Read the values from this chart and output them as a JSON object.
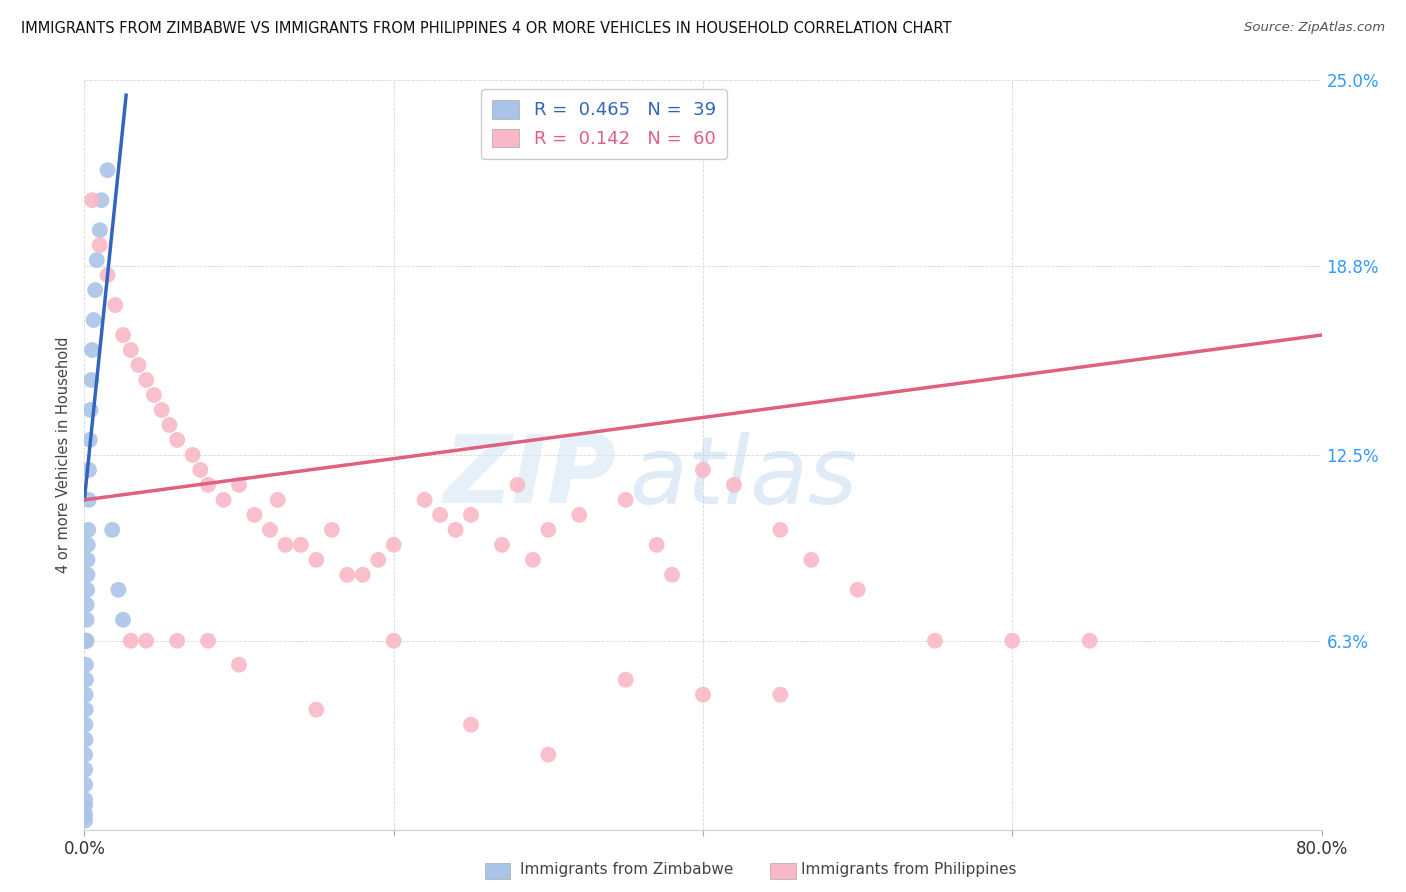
{
  "title": "IMMIGRANTS FROM ZIMBABWE VS IMMIGRANTS FROM PHILIPPINES 4 OR MORE VEHICLES IN HOUSEHOLD CORRELATION CHART",
  "source": "Source: ZipAtlas.com",
  "ylabel": "4 or more Vehicles in Household",
  "xlim": [
    0.0,
    80.0
  ],
  "ylim": [
    0.0,
    25.0
  ],
  "yticks": [
    0.0,
    6.3,
    12.5,
    18.8,
    25.0
  ],
  "xticks": [
    0.0,
    20.0,
    40.0,
    60.0,
    80.0
  ],
  "xtick_labels_show": [
    "0.0%",
    "80.0%"
  ],
  "ytick_labels": [
    "",
    "6.3%",
    "12.5%",
    "18.8%",
    "25.0%"
  ],
  "zim_color": "#aac4e8",
  "phil_color": "#f9b8c8",
  "zim_line_color": "#3366bb",
  "phil_line_color": "#e06080",
  "background_color": "#ffffff",
  "grid_color": "#d8d8d8",
  "legend_zim_label": "R =  0.465   N =  39",
  "legend_phil_label": "R =  0.142   N =  60",
  "legend_zim_color": "#3366bb",
  "legend_phil_color": "#e06080",
  "bottom_zim_label": "Immigrants from Zimbabwe",
  "bottom_phil_label": "Immigrants from Philippines",
  "zim_x": [
    0.05,
    0.05,
    0.05,
    0.05,
    0.05,
    0.05,
    0.05,
    0.07,
    0.07,
    0.08,
    0.08,
    0.1,
    0.1,
    0.12,
    0.12,
    0.13,
    0.15,
    0.15,
    0.18,
    0.2,
    0.2,
    0.22,
    0.25,
    0.28,
    0.3,
    0.35,
    0.4,
    0.45,
    0.5,
    0.6,
    0.7,
    0.8,
    1.0,
    1.1,
    1.5,
    1.8,
    2.2,
    2.5,
    0.05
  ],
  "zim_y": [
    0.3,
    0.5,
    0.8,
    1.0,
    1.5,
    2.0,
    2.5,
    3.0,
    3.5,
    4.0,
    4.5,
    5.0,
    5.5,
    6.3,
    6.3,
    6.3,
    7.0,
    7.5,
    8.0,
    8.5,
    9.0,
    9.5,
    10.0,
    11.0,
    12.0,
    13.0,
    14.0,
    15.0,
    16.0,
    17.0,
    18.0,
    19.0,
    20.0,
    21.0,
    22.0,
    10.0,
    8.0,
    7.0,
    6.3
  ],
  "phil_x": [
    0.5,
    1.0,
    1.5,
    2.0,
    2.5,
    3.0,
    3.5,
    4.0,
    4.5,
    5.0,
    5.5,
    6.0,
    7.0,
    7.5,
    8.0,
    9.0,
    10.0,
    11.0,
    12.0,
    12.5,
    13.0,
    14.0,
    15.0,
    16.0,
    17.0,
    18.0,
    19.0,
    20.0,
    22.0,
    23.0,
    24.0,
    25.0,
    27.0,
    28.0,
    29.0,
    30.0,
    32.0,
    35.0,
    37.0,
    38.0,
    40.0,
    42.0,
    45.0,
    47.0,
    50.0,
    55.0,
    60.0,
    65.0,
    35.0,
    40.0,
    20.0,
    25.0,
    15.0,
    10.0,
    8.0,
    6.0,
    4.0,
    3.0,
    45.0,
    30.0
  ],
  "phil_y": [
    21.0,
    19.5,
    18.5,
    17.5,
    16.5,
    16.0,
    15.5,
    15.0,
    14.5,
    14.0,
    13.5,
    13.0,
    12.5,
    12.0,
    11.5,
    11.0,
    11.5,
    10.5,
    10.0,
    11.0,
    9.5,
    9.5,
    9.0,
    10.0,
    8.5,
    8.5,
    9.0,
    9.5,
    11.0,
    10.5,
    10.0,
    10.5,
    9.5,
    11.5,
    9.0,
    10.0,
    10.5,
    11.0,
    9.5,
    8.5,
    12.0,
    11.5,
    10.0,
    9.0,
    8.0,
    6.3,
    6.3,
    6.3,
    5.0,
    4.5,
    6.3,
    3.5,
    4.0,
    5.5,
    6.3,
    6.3,
    6.3,
    6.3,
    4.5,
    2.5
  ],
  "zim_line_x": [
    0.0,
    2.6
  ],
  "zim_line_y_start": 11.0,
  "zim_line_slope": 5.0,
  "phil_line_x": [
    0.0,
    80.0
  ],
  "phil_line_y_start": 11.0,
  "phil_line_y_end": 16.5
}
